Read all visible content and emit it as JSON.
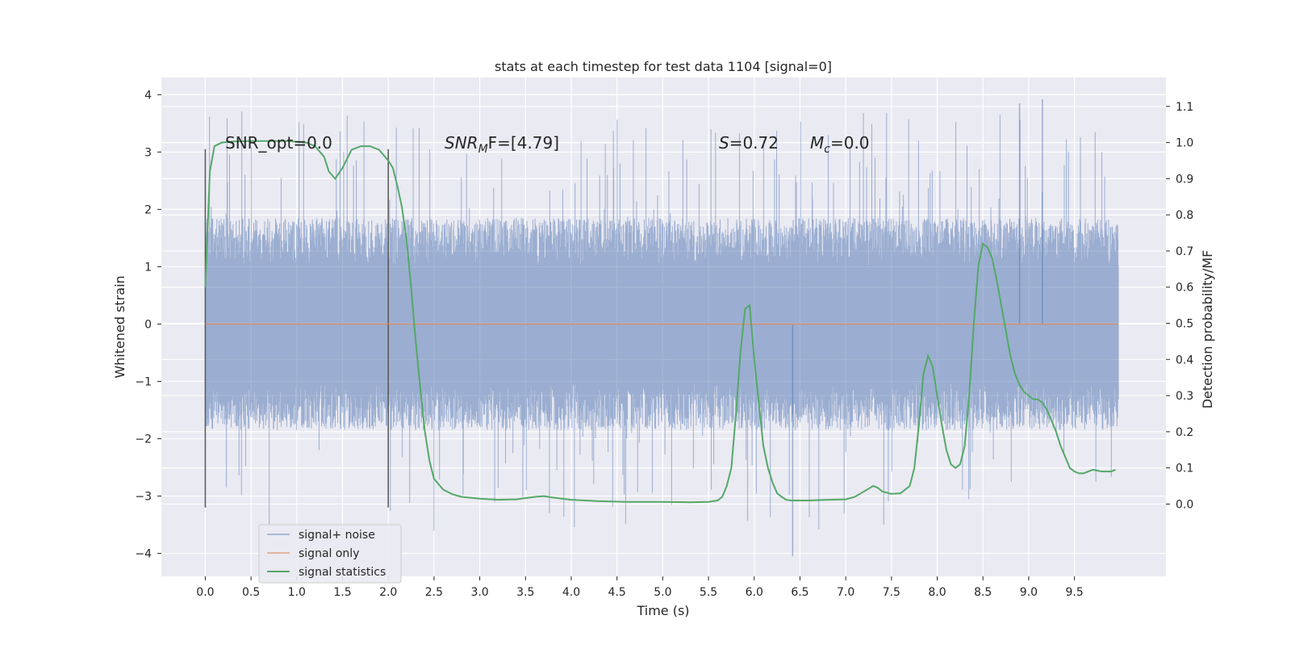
{
  "chart_data": {
    "type": "line",
    "title": "stats at each timestep for test data 1104 [signal=0]",
    "xlabel": "Time (s)",
    "ylabel_left": "Whitened strain",
    "ylabel_right": "Detection probability/MF",
    "xlim": [
      -0.48,
      10.5
    ],
    "ylim_left": [
      -4.4,
      4.3
    ],
    "ylim_right": [
      -0.2,
      1.18
    ],
    "x_ticks": [
      "0.0",
      "0.5",
      "1.0",
      "1.5",
      "2.0",
      "2.5",
      "3.0",
      "3.5",
      "4.0",
      "4.5",
      "5.0",
      "5.5",
      "6.0",
      "6.5",
      "7.0",
      "7.5",
      "8.0",
      "8.5",
      "9.0",
      "9.5"
    ],
    "y_ticks_left": [
      "4",
      "3",
      "2",
      "1",
      "0",
      "−1",
      "−2",
      "−3",
      "−4"
    ],
    "y_ticks_right": [
      "0.0",
      "0.1",
      "0.2",
      "0.3",
      "0.4",
      "0.5",
      "0.6",
      "0.7",
      "0.8",
      "0.9",
      "1.0",
      "1.1"
    ],
    "grid": true,
    "legend_position": "lower-left",
    "annotations": {
      "snr_opt": "SNR_opt=0.0",
      "snr_mf_base": "SNR",
      "snr_mf_sub": "M",
      "snr_mf_rest": "F=[4.79]",
      "s_label": "S",
      "s_value": "=0.72",
      "mc_label": "M",
      "mc_sub": "c",
      "mc_value": "=0.0"
    },
    "vertical_markers": [
      0.0,
      2.0
    ],
    "marker_range": [
      -3.2,
      3.05
    ],
    "series": [
      {
        "name": "signal+ noise",
        "color": "#4c72b0",
        "x_range": [
          0.0,
          9.98
        ],
        "envelope": {
          "typical": [
            -1.85,
            1.85
          ],
          "peak": [
            -4.05,
            3.92
          ]
        }
      },
      {
        "name": "signal only",
        "color": "#dd8452",
        "x": [
          0.0,
          9.98
        ],
        "y": [
          0.0,
          0.0
        ]
      },
      {
        "name": "signal statistics",
        "color": "#55a868",
        "axis": "right",
        "x": [
          0.0,
          0.05,
          0.1,
          0.18,
          0.3,
          0.5,
          0.7,
          0.9,
          1.1,
          1.2,
          1.3,
          1.35,
          1.42,
          1.5,
          1.6,
          1.7,
          1.8,
          1.9,
          2.0,
          2.05,
          2.1,
          2.15,
          2.2,
          2.25,
          2.3,
          2.35,
          2.4,
          2.45,
          2.5,
          2.6,
          2.7,
          2.8,
          3.0,
          3.2,
          3.4,
          3.6,
          3.7,
          3.8,
          4.0,
          4.3,
          4.6,
          5.0,
          5.3,
          5.5,
          5.6,
          5.65,
          5.7,
          5.75,
          5.8,
          5.85,
          5.9,
          5.95,
          6.0,
          6.05,
          6.1,
          6.15,
          6.2,
          6.25,
          6.3,
          6.35,
          6.4,
          6.5,
          6.6,
          6.8,
          7.0,
          7.1,
          7.2,
          7.3,
          7.35,
          7.4,
          7.5,
          7.6,
          7.7,
          7.75,
          7.8,
          7.85,
          7.9,
          7.95,
          8.0,
          8.05,
          8.1,
          8.15,
          8.2,
          8.25,
          8.3,
          8.35,
          8.4,
          8.45,
          8.5,
          8.55,
          8.6,
          8.65,
          8.7,
          8.75,
          8.8,
          8.85,
          8.9,
          8.95,
          9.0,
          9.05,
          9.1,
          9.15,
          9.2,
          9.25,
          9.3,
          9.35,
          9.4,
          9.45,
          9.5,
          9.55,
          9.6,
          9.65,
          9.7,
          9.8,
          9.9,
          9.95
        ],
        "y": [
          0.6,
          0.92,
          0.99,
          1.0,
          1.003,
          1.004,
          1.004,
          1.004,
          1.0,
          0.99,
          0.96,
          0.92,
          0.9,
          0.93,
          0.98,
          0.99,
          0.99,
          0.98,
          0.95,
          0.93,
          0.88,
          0.82,
          0.73,
          0.6,
          0.45,
          0.32,
          0.2,
          0.12,
          0.07,
          0.04,
          0.027,
          0.02,
          0.015,
          0.012,
          0.013,
          0.02,
          0.022,
          0.018,
          0.012,
          0.008,
          0.006,
          0.006,
          0.005,
          0.006,
          0.01,
          0.02,
          0.05,
          0.1,
          0.25,
          0.42,
          0.54,
          0.55,
          0.4,
          0.28,
          0.16,
          0.1,
          0.06,
          0.03,
          0.02,
          0.012,
          0.01,
          0.01,
          0.01,
          0.012,
          0.013,
          0.02,
          0.035,
          0.05,
          0.045,
          0.035,
          0.028,
          0.03,
          0.05,
          0.1,
          0.22,
          0.36,
          0.41,
          0.38,
          0.3,
          0.22,
          0.15,
          0.11,
          0.1,
          0.11,
          0.16,
          0.3,
          0.5,
          0.66,
          0.72,
          0.71,
          0.68,
          0.62,
          0.55,
          0.48,
          0.41,
          0.36,
          0.33,
          0.31,
          0.3,
          0.29,
          0.29,
          0.28,
          0.26,
          0.23,
          0.2,
          0.16,
          0.13,
          0.1,
          0.09,
          0.085,
          0.085,
          0.09,
          0.095,
          0.09,
          0.09,
          0.095
        ]
      }
    ]
  }
}
